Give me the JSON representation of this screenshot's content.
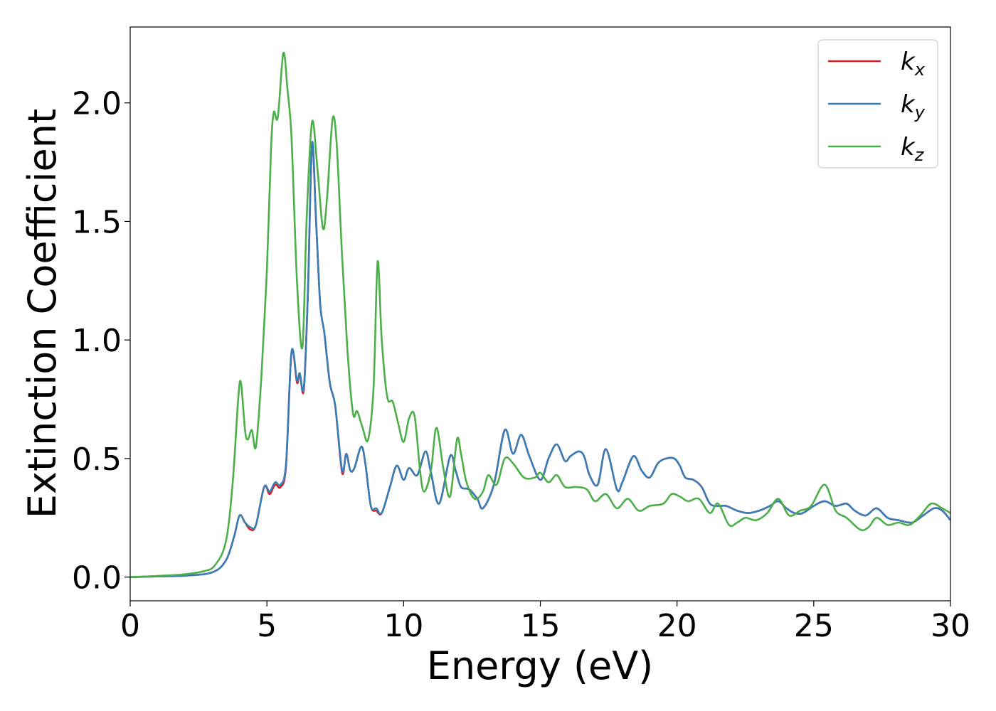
{
  "chart_data": {
    "type": "line",
    "xlabel": "Energy (eV)",
    "ylabel": "Extinction Coefficient",
    "xlim": [
      0,
      30
    ],
    "ylim": [
      -0.1,
      2.32
    ],
    "xticks": [
      0,
      5,
      10,
      15,
      20,
      25,
      30
    ],
    "yticks": [
      0.0,
      0.5,
      1.0,
      1.5,
      2.0
    ],
    "xtick_labels": [
      "0",
      "5",
      "10",
      "15",
      "20",
      "25",
      "30"
    ],
    "ytick_labels": [
      "0.0",
      "0.5",
      "1.0",
      "1.5",
      "2.0"
    ],
    "grid": false,
    "legend_position": "top-right",
    "series": [
      {
        "name": "k",
        "name_sub": "x",
        "color": "#e41a1c",
        "points": [
          [
            0,
            0
          ],
          [
            1,
            0.003
          ],
          [
            2,
            0.006
          ],
          [
            3,
            0.02
          ],
          [
            3.5,
            0.07
          ],
          [
            3.8,
            0.17
          ],
          [
            4.0,
            0.26
          ],
          [
            4.2,
            0.23
          ],
          [
            4.4,
            0.2
          ],
          [
            4.6,
            0.22
          ],
          [
            4.9,
            0.38
          ],
          [
            5.1,
            0.35
          ],
          [
            5.3,
            0.39
          ],
          [
            5.5,
            0.38
          ],
          [
            5.7,
            0.47
          ],
          [
            5.9,
            0.95
          ],
          [
            6.1,
            0.82
          ],
          [
            6.2,
            0.86
          ],
          [
            6.35,
            0.79
          ],
          [
            6.5,
            1.2
          ],
          [
            6.65,
            1.82
          ],
          [
            6.8,
            1.5
          ],
          [
            6.95,
            1.15
          ],
          [
            7.1,
            1.03
          ],
          [
            7.3,
            0.82
          ],
          [
            7.5,
            0.72
          ],
          [
            7.75,
            0.44
          ],
          [
            7.9,
            0.52
          ],
          [
            8.05,
            0.45
          ],
          [
            8.2,
            0.46
          ],
          [
            8.45,
            0.55
          ],
          [
            8.6,
            0.48
          ],
          [
            8.8,
            0.3
          ],
          [
            9.0,
            0.28
          ],
          [
            9.2,
            0.27
          ],
          [
            9.5,
            0.38
          ],
          [
            9.75,
            0.47
          ],
          [
            10.0,
            0.41
          ],
          [
            10.2,
            0.46
          ],
          [
            10.5,
            0.43
          ],
          [
            10.8,
            0.53
          ],
          [
            11.0,
            0.44
          ],
          [
            11.3,
            0.31
          ],
          [
            11.7,
            0.51
          ],
          [
            11.9,
            0.45
          ],
          [
            12.1,
            0.38
          ],
          [
            12.4,
            0.37
          ],
          [
            12.7,
            0.33
          ],
          [
            12.9,
            0.29
          ],
          [
            13.3,
            0.39
          ],
          [
            13.7,
            0.62
          ],
          [
            14.0,
            0.52
          ],
          [
            14.3,
            0.6
          ],
          [
            14.6,
            0.51
          ],
          [
            15.0,
            0.41
          ],
          [
            15.3,
            0.5
          ],
          [
            15.6,
            0.56
          ],
          [
            15.9,
            0.49
          ],
          [
            16.1,
            0.51
          ],
          [
            16.4,
            0.53
          ],
          [
            16.6,
            0.51
          ],
          [
            16.8,
            0.43
          ],
          [
            17.1,
            0.39
          ],
          [
            17.4,
            0.54
          ],
          [
            17.8,
            0.37
          ],
          [
            18.0,
            0.4
          ],
          [
            18.4,
            0.51
          ],
          [
            18.7,
            0.45
          ],
          [
            19.0,
            0.42
          ],
          [
            19.3,
            0.48
          ],
          [
            19.6,
            0.5
          ],
          [
            19.9,
            0.5
          ],
          [
            20.1,
            0.47
          ],
          [
            20.3,
            0.42
          ],
          [
            20.6,
            0.41
          ],
          [
            20.9,
            0.38
          ],
          [
            21.2,
            0.31
          ],
          [
            21.5,
            0.3
          ],
          [
            21.8,
            0.3
          ],
          [
            22.2,
            0.28
          ],
          [
            22.6,
            0.27
          ],
          [
            23.0,
            0.28
          ],
          [
            23.4,
            0.3
          ],
          [
            23.7,
            0.32
          ],
          [
            24.0,
            0.29
          ],
          [
            24.3,
            0.27
          ],
          [
            24.6,
            0.27
          ],
          [
            25.0,
            0.3
          ],
          [
            25.4,
            0.32
          ],
          [
            25.8,
            0.3
          ],
          [
            26.2,
            0.31
          ],
          [
            26.5,
            0.28
          ],
          [
            26.9,
            0.26
          ],
          [
            27.3,
            0.29
          ],
          [
            27.7,
            0.25
          ],
          [
            28.1,
            0.24
          ],
          [
            28.6,
            0.23
          ],
          [
            29.0,
            0.26
          ],
          [
            29.4,
            0.29
          ],
          [
            29.7,
            0.28
          ],
          [
            30,
            0.24
          ]
        ]
      },
      {
        "name": "k",
        "name_sub": "y",
        "color": "#377eb8",
        "points": [
          [
            0,
            0
          ],
          [
            1,
            0.003
          ],
          [
            2,
            0.006
          ],
          [
            3,
            0.02
          ],
          [
            3.5,
            0.07
          ],
          [
            3.8,
            0.17
          ],
          [
            4.0,
            0.26
          ],
          [
            4.2,
            0.23
          ],
          [
            4.4,
            0.21
          ],
          [
            4.6,
            0.22
          ],
          [
            4.9,
            0.38
          ],
          [
            5.1,
            0.36
          ],
          [
            5.3,
            0.4
          ],
          [
            5.5,
            0.39
          ],
          [
            5.7,
            0.48
          ],
          [
            5.9,
            0.95
          ],
          [
            6.1,
            0.83
          ],
          [
            6.2,
            0.86
          ],
          [
            6.35,
            0.8
          ],
          [
            6.5,
            1.2
          ],
          [
            6.65,
            1.83
          ],
          [
            6.8,
            1.5
          ],
          [
            6.95,
            1.15
          ],
          [
            7.1,
            1.03
          ],
          [
            7.3,
            0.82
          ],
          [
            7.5,
            0.72
          ],
          [
            7.75,
            0.45
          ],
          [
            7.9,
            0.52
          ],
          [
            8.05,
            0.45
          ],
          [
            8.2,
            0.46
          ],
          [
            8.45,
            0.55
          ],
          [
            8.6,
            0.48
          ],
          [
            8.8,
            0.3
          ],
          [
            9.0,
            0.29
          ],
          [
            9.2,
            0.27
          ],
          [
            9.5,
            0.38
          ],
          [
            9.75,
            0.47
          ],
          [
            10.0,
            0.41
          ],
          [
            10.2,
            0.46
          ],
          [
            10.5,
            0.43
          ],
          [
            10.8,
            0.53
          ],
          [
            11.0,
            0.44
          ],
          [
            11.3,
            0.31
          ],
          [
            11.7,
            0.51
          ],
          [
            11.9,
            0.45
          ],
          [
            12.1,
            0.38
          ],
          [
            12.4,
            0.37
          ],
          [
            12.7,
            0.33
          ],
          [
            12.9,
            0.29
          ],
          [
            13.3,
            0.39
          ],
          [
            13.7,
            0.62
          ],
          [
            14.0,
            0.52
          ],
          [
            14.3,
            0.6
          ],
          [
            14.6,
            0.51
          ],
          [
            15.0,
            0.41
          ],
          [
            15.3,
            0.5
          ],
          [
            15.6,
            0.56
          ],
          [
            15.9,
            0.49
          ],
          [
            16.1,
            0.51
          ],
          [
            16.4,
            0.53
          ],
          [
            16.6,
            0.51
          ],
          [
            16.8,
            0.43
          ],
          [
            17.1,
            0.39
          ],
          [
            17.4,
            0.54
          ],
          [
            17.8,
            0.37
          ],
          [
            18.0,
            0.4
          ],
          [
            18.4,
            0.51
          ],
          [
            18.7,
            0.45
          ],
          [
            19.0,
            0.42
          ],
          [
            19.3,
            0.48
          ],
          [
            19.6,
            0.5
          ],
          [
            19.9,
            0.5
          ],
          [
            20.1,
            0.47
          ],
          [
            20.3,
            0.42
          ],
          [
            20.6,
            0.41
          ],
          [
            20.9,
            0.38
          ],
          [
            21.2,
            0.31
          ],
          [
            21.5,
            0.3
          ],
          [
            21.8,
            0.3
          ],
          [
            22.2,
            0.28
          ],
          [
            22.6,
            0.27
          ],
          [
            23.0,
            0.28
          ],
          [
            23.4,
            0.3
          ],
          [
            23.7,
            0.32
          ],
          [
            24.0,
            0.29
          ],
          [
            24.3,
            0.27
          ],
          [
            24.6,
            0.27
          ],
          [
            25.0,
            0.3
          ],
          [
            25.4,
            0.32
          ],
          [
            25.8,
            0.3
          ],
          [
            26.2,
            0.31
          ],
          [
            26.5,
            0.28
          ],
          [
            26.9,
            0.26
          ],
          [
            27.3,
            0.29
          ],
          [
            27.7,
            0.25
          ],
          [
            28.1,
            0.24
          ],
          [
            28.6,
            0.23
          ],
          [
            29.0,
            0.26
          ],
          [
            29.4,
            0.29
          ],
          [
            29.7,
            0.28
          ],
          [
            30,
            0.24
          ]
        ]
      },
      {
        "name": "k",
        "name_sub": "z",
        "color": "#4daf4a",
        "points": [
          [
            0,
            0
          ],
          [
            1,
            0.005
          ],
          [
            2,
            0.012
          ],
          [
            2.7,
            0.025
          ],
          [
            3.1,
            0.05
          ],
          [
            3.5,
            0.15
          ],
          [
            3.75,
            0.4
          ],
          [
            3.95,
            0.75
          ],
          [
            4.05,
            0.82
          ],
          [
            4.2,
            0.62
          ],
          [
            4.3,
            0.58
          ],
          [
            4.45,
            0.62
          ],
          [
            4.6,
            0.55
          ],
          [
            4.8,
            0.85
          ],
          [
            5.0,
            1.3
          ],
          [
            5.15,
            1.8
          ],
          [
            5.25,
            1.96
          ],
          [
            5.4,
            1.94
          ],
          [
            5.6,
            2.21
          ],
          [
            5.75,
            2.06
          ],
          [
            5.9,
            1.85
          ],
          [
            6.1,
            1.25
          ],
          [
            6.3,
            0.97
          ],
          [
            6.45,
            1.5
          ],
          [
            6.65,
            1.92
          ],
          [
            6.85,
            1.72
          ],
          [
            7.05,
            1.47
          ],
          [
            7.2,
            1.6
          ],
          [
            7.4,
            1.93
          ],
          [
            7.55,
            1.83
          ],
          [
            7.75,
            1.35
          ],
          [
            7.95,
            0.95
          ],
          [
            8.15,
            0.69
          ],
          [
            8.3,
            0.7
          ],
          [
            8.5,
            0.63
          ],
          [
            8.7,
            0.58
          ],
          [
            8.9,
            0.8
          ],
          [
            9.05,
            1.33
          ],
          [
            9.2,
            1.0
          ],
          [
            9.4,
            0.76
          ],
          [
            9.6,
            0.74
          ],
          [
            9.8,
            0.65
          ],
          [
            10.0,
            0.57
          ],
          [
            10.2,
            0.67
          ],
          [
            10.4,
            0.68
          ],
          [
            10.6,
            0.45
          ],
          [
            10.75,
            0.36
          ],
          [
            11.0,
            0.45
          ],
          [
            11.2,
            0.63
          ],
          [
            11.45,
            0.46
          ],
          [
            11.7,
            0.34
          ],
          [
            11.95,
            0.58
          ],
          [
            12.1,
            0.52
          ],
          [
            12.3,
            0.4
          ],
          [
            12.6,
            0.33
          ],
          [
            12.9,
            0.36
          ],
          [
            13.1,
            0.43
          ],
          [
            13.4,
            0.39
          ],
          [
            13.7,
            0.5
          ],
          [
            14.0,
            0.48
          ],
          [
            14.4,
            0.42
          ],
          [
            14.8,
            0.42
          ],
          [
            15.0,
            0.44
          ],
          [
            15.3,
            0.4
          ],
          [
            15.6,
            0.43
          ],
          [
            15.9,
            0.38
          ],
          [
            16.3,
            0.38
          ],
          [
            16.7,
            0.37
          ],
          [
            17.0,
            0.32
          ],
          [
            17.4,
            0.35
          ],
          [
            17.8,
            0.29
          ],
          [
            18.2,
            0.33
          ],
          [
            18.6,
            0.28
          ],
          [
            19.0,
            0.3
          ],
          [
            19.5,
            0.31
          ],
          [
            19.8,
            0.35
          ],
          [
            20.1,
            0.34
          ],
          [
            20.4,
            0.32
          ],
          [
            20.8,
            0.33
          ],
          [
            21.2,
            0.27
          ],
          [
            21.5,
            0.31
          ],
          [
            21.9,
            0.22
          ],
          [
            22.2,
            0.23
          ],
          [
            22.5,
            0.25
          ],
          [
            22.9,
            0.24
          ],
          [
            23.3,
            0.27
          ],
          [
            23.7,
            0.33
          ],
          [
            24.1,
            0.26
          ],
          [
            24.5,
            0.28
          ],
          [
            24.9,
            0.3
          ],
          [
            25.4,
            0.39
          ],
          [
            25.8,
            0.28
          ],
          [
            26.2,
            0.25
          ],
          [
            26.7,
            0.2
          ],
          [
            27.0,
            0.21
          ],
          [
            27.3,
            0.25
          ],
          [
            27.7,
            0.22
          ],
          [
            28.1,
            0.23
          ],
          [
            28.5,
            0.22
          ],
          [
            28.9,
            0.26
          ],
          [
            29.3,
            0.31
          ],
          [
            29.7,
            0.29
          ],
          [
            30,
            0.27
          ]
        ]
      }
    ]
  }
}
